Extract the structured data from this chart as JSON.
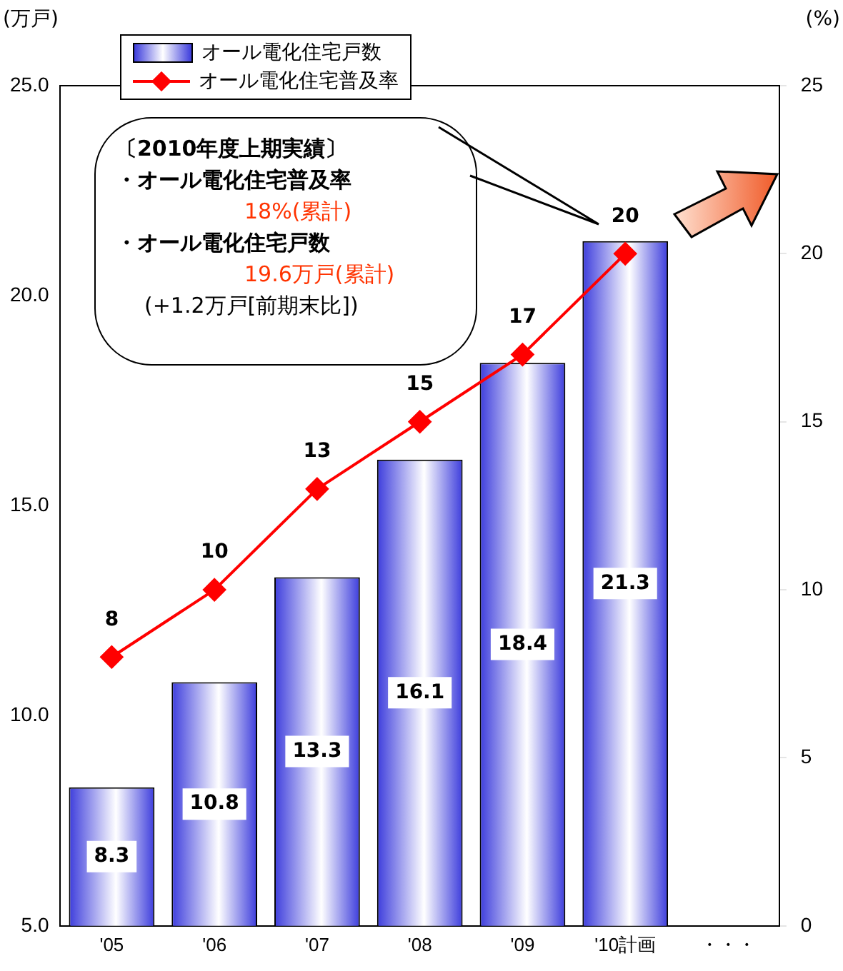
{
  "chart_data": {
    "type": "bar",
    "categories": [
      "'05",
      "'06",
      "'07",
      "'08",
      "'09",
      "'10計画",
      "・・・"
    ],
    "series": [
      {
        "name": "オール電化住宅戸数",
        "color": "#3c3cdc",
        "values": [
          8.3,
          10.8,
          13.3,
          16.1,
          18.4,
          21.3,
          null
        ]
      },
      {
        "name": "オール電化住宅普及率",
        "type": "line",
        "axis": "y2",
        "color": "#ff0000",
        "values": [
          8,
          10,
          13,
          15,
          17,
          20,
          null
        ]
      }
    ],
    "ylabel": "(万戸)",
    "y2label": "(%)",
    "ylim": [
      5,
      25
    ],
    "yticks": [
      {
        "value": 5,
        "label": "5.0"
      },
      {
        "value": 10,
        "label": "10.0"
      },
      {
        "value": 15,
        "label": "15.0"
      },
      {
        "value": 20,
        "label": "20.0"
      },
      {
        "value": 25,
        "label": "25.0"
      }
    ],
    "y2lim": [
      0,
      25
    ],
    "y2ticks": [
      0,
      5,
      10,
      15,
      20,
      25
    ],
    "data_labels": true,
    "marker": "diamond",
    "legend": "top left",
    "grid": false,
    "annotations": [
      "〔2010年度上期実績〕",
      "・オール電化住宅普及率",
      "18%(累計)",
      "・オール電化住宅戸数",
      "19.6万戸(累計)",
      "(+1.2万戸[前期末比])"
    ]
  }
}
